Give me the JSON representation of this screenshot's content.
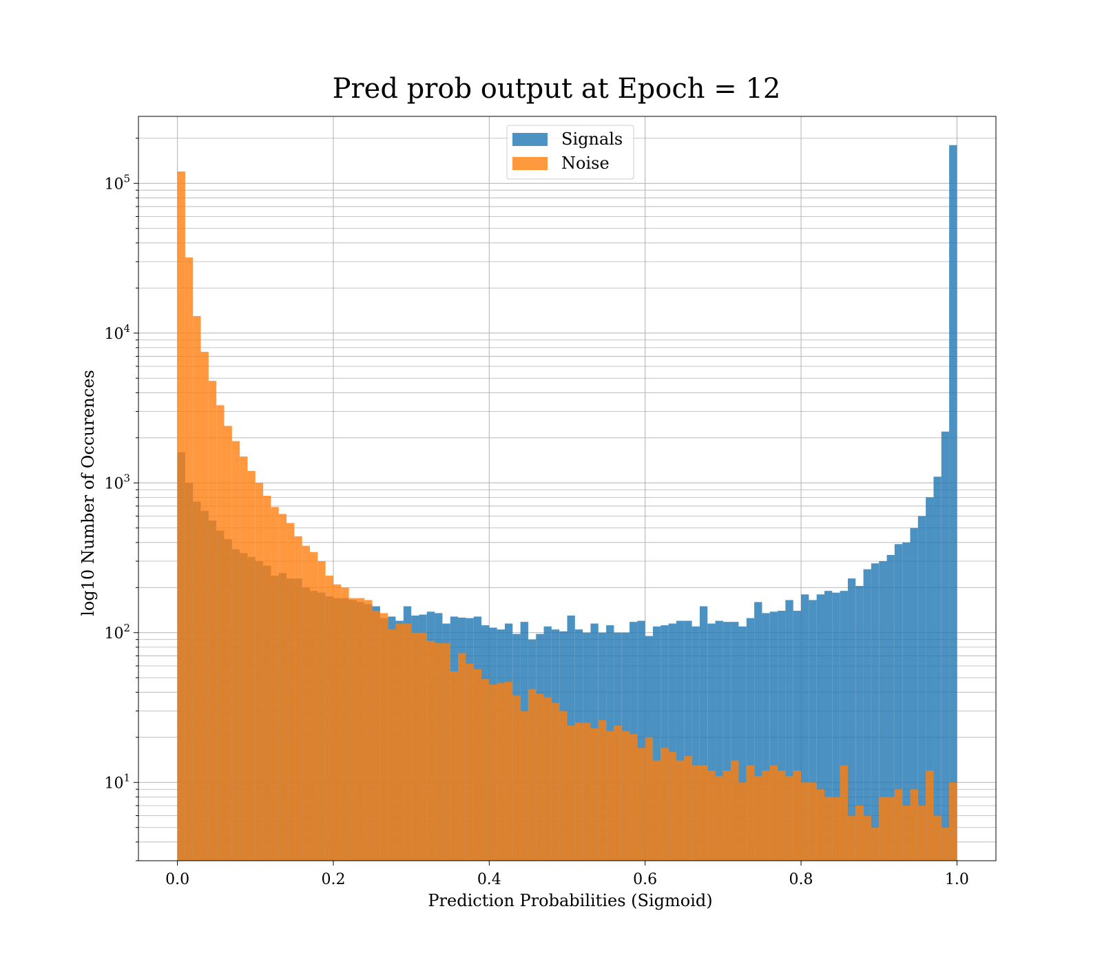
{
  "chart_data": {
    "type": "bar",
    "title": "Pred prob output at Epoch = 12",
    "xlabel": "Prediction Probabilities (Sigmoid)",
    "ylabel": "log10 Number of Occurences",
    "xlim": [
      -0.05,
      1.05
    ],
    "ylim": [
      3,
      280000
    ],
    "yscale": "log",
    "grid": true,
    "legend_position": "top-center",
    "x_ticks": [
      "0.0",
      "0.2",
      "0.4",
      "0.6",
      "0.8",
      "1.0"
    ],
    "x_tick_values": [
      0,
      0.2,
      0.4,
      0.6,
      0.8,
      1.0
    ],
    "y_ticks": [
      {
        "value": 10,
        "base": "10",
        "exp": "1"
      },
      {
        "value": 100,
        "base": "10",
        "exp": "2"
      },
      {
        "value": 1000,
        "base": "10",
        "exp": "3"
      },
      {
        "value": 10000,
        "base": "10",
        "exp": "4"
      },
      {
        "value": 100000,
        "base": "10",
        "exp": "5"
      }
    ],
    "series": [
      {
        "name": "Signals",
        "color": "#1f77b4",
        "bin_start": 0.0,
        "bin_width": 0.01,
        "values": [
          1600,
          1000,
          750,
          650,
          560,
          480,
          420,
          360,
          340,
          320,
          300,
          280,
          240,
          250,
          230,
          230,
          200,
          190,
          185,
          175,
          170,
          170,
          165,
          160,
          155,
          150,
          125,
          128,
          120,
          150,
          130,
          132,
          138,
          135,
          115,
          128,
          126,
          125,
          128,
          112,
          108,
          105,
          115,
          98,
          118,
          90,
          98,
          110,
          105,
          102,
          130,
          105,
          100,
          115,
          100,
          112,
          100,
          100,
          118,
          120,
          95,
          110,
          112,
          115,
          120,
          120,
          110,
          150,
          115,
          120,
          118,
          118,
          110,
          125,
          160,
          135,
          138,
          140,
          165,
          140,
          180,
          165,
          180,
          190,
          185,
          190,
          230,
          205,
          265,
          290,
          300,
          330,
          390,
          400,
          500,
          600,
          800,
          1100,
          2200,
          180000
        ]
      },
      {
        "name": "Noise",
        "color": "#ff7f0e",
        "bin_start": 0.0,
        "bin_width": 0.01,
        "values": [
          120000,
          32000,
          13000,
          7500,
          4800,
          3300,
          2400,
          1900,
          1500,
          1200,
          1000,
          820,
          690,
          620,
          540,
          440,
          380,
          345,
          300,
          240,
          210,
          200,
          170,
          170,
          165,
          140,
          135,
          105,
          115,
          115,
          100,
          100,
          88,
          85,
          85,
          55,
          73,
          62,
          57,
          49,
          45,
          46,
          47,
          38,
          30,
          42,
          39,
          37,
          34,
          30,
          24,
          25,
          25,
          23,
          26,
          22,
          24,
          22,
          21,
          17,
          20,
          14,
          17,
          16,
          14,
          15,
          13,
          13,
          12,
          11,
          12,
          14,
          10,
          13,
          11,
          12,
          13,
          12,
          11,
          12,
          10,
          10,
          9,
          8,
          8,
          13,
          6,
          7,
          6,
          5,
          8,
          8,
          9,
          7,
          9,
          7,
          12,
          6,
          5,
          10
        ]
      }
    ]
  }
}
